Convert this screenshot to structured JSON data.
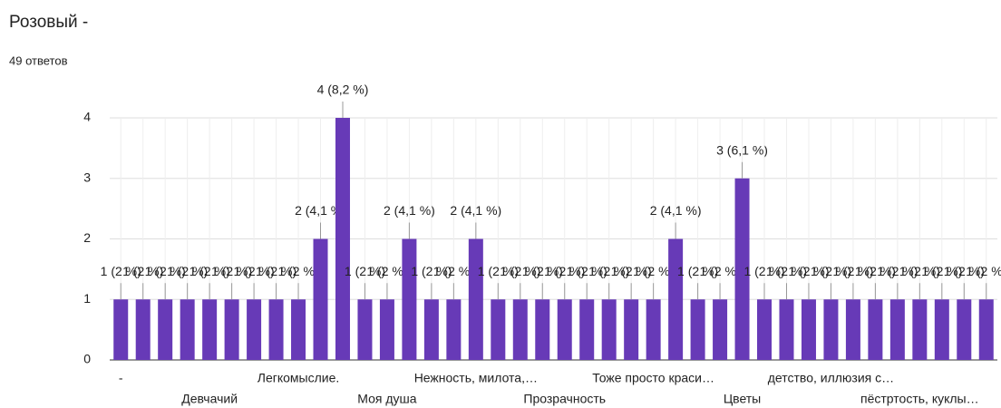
{
  "title": "Розовый -",
  "subtitle": "49 ответов",
  "chart_data": {
    "type": "bar",
    "color": "#673ab7",
    "categories": [
      "-",
      null,
      null,
      null,
      "Девчачий",
      null,
      null,
      null,
      "Легкомыслие.",
      null,
      null,
      null,
      "Моя душа",
      null,
      null,
      null,
      "Нежность, милота,…",
      null,
      null,
      null,
      "Прозрачность",
      null,
      null,
      null,
      "Тоже просто краси…",
      null,
      null,
      null,
      "Цветы",
      null,
      null,
      null,
      "детство, иллюзия с…",
      null,
      null,
      null,
      "пёстртость, куклы…",
      null,
      null,
      null
    ],
    "values": [
      1,
      1,
      1,
      1,
      1,
      1,
      1,
      1,
      1,
      2,
      4,
      1,
      1,
      2,
      1,
      1,
      2,
      1,
      1,
      1,
      1,
      1,
      1,
      1,
      1,
      2,
      1,
      1,
      3,
      1,
      1,
      1,
      1,
      1,
      1,
      1,
      1,
      1,
      1,
      1
    ],
    "value_labels": [
      "1 (2 %)",
      "1 (2 %)",
      "1 (2 %)",
      "1 (2 %)",
      "1 (2 %)",
      "1 (2 %)",
      "1 (2 %)",
      "1 (2 %)",
      "1 (2 %)",
      "2 (4,1 %)",
      "4 (8,2 %)",
      "1 (2 %)",
      "1 (2 %)",
      "2 (4,1 %)",
      "1 (2 %)",
      "1 (2 %)",
      "2 (4,1 %)",
      "1 (2 %)",
      "1 (2 %)",
      "1 (2 %)",
      "1 (2 %)",
      "1 (2 %)",
      "1 (2 %)",
      "1 (2 %)",
      "1 (2 %)",
      "2 (4,1 %)",
      "1 (2 %)",
      "1 (2 %)",
      "3 (6,1 %)",
      "1 (2 %)",
      "1 (2 %)",
      "1 (2 %)",
      "1 (2 %)",
      "1 (2 %)",
      "1 (2 %)",
      "1 (2 %)",
      "1 (2 %)",
      "1 (2 %)",
      "1 (2 %)",
      "1 (2 %)"
    ],
    "ylim": [
      0,
      4
    ],
    "yticks": [
      0,
      1,
      2,
      3,
      4
    ],
    "grid": true
  }
}
